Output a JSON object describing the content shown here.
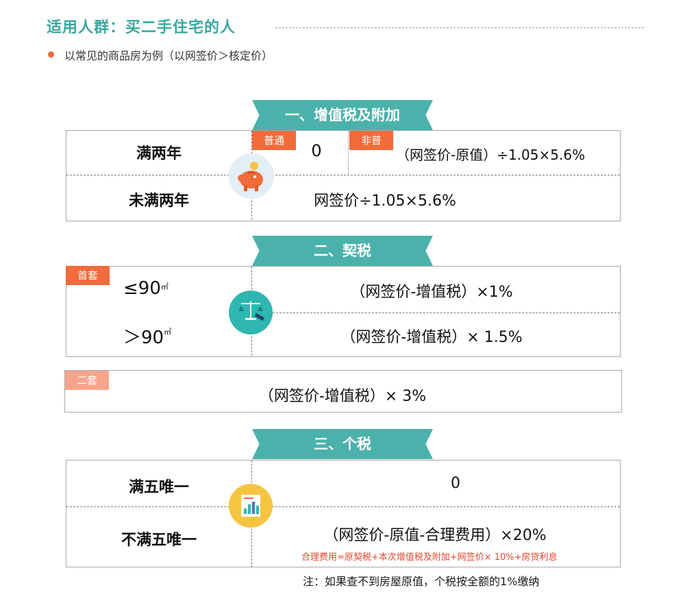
{
  "header": {
    "title": "适用人群：买二手住宅的人",
    "note": "以常见的商品房为例（以网签价＞核定价）"
  },
  "section1": {
    "banner": "一、增值税及附加",
    "row1_label": "满两年",
    "tag_normal": "普通",
    "normal_value": "0",
    "tag_nonnormal": "非普",
    "nonnormal_formula": "（网签价-原值）÷1.05×5.6%",
    "row2_label": "未满两年",
    "row2_formula": "网签价÷1.05×5.6%",
    "icon": "piggy-bank-icon"
  },
  "section2": {
    "banner": "二、契税",
    "tag_first": "首套",
    "row1_label": "≤90",
    "row1_unit": "㎡",
    "row1_formula": "（网签价-增值税）×1%",
    "row2_label": "＞90",
    "row2_unit": "㎡",
    "row2_formula": "（网签价-增值税）× 1.5%",
    "tag_second": "二套",
    "second_formula": "（网签价-增值税）× 3%",
    "icon": "scales-gavel-icon"
  },
  "section3": {
    "banner": "三、个税",
    "row1_label": "满五唯一",
    "row1_value": "0",
    "row2_label": "不满五唯一",
    "row2_formula": "（网签价-原值-合理费用）×20%",
    "fee_note": "合理费用=原契税+本次增值税及附加+网签价× 10%+房贷利息",
    "footnote": "注：如果查不到房屋原值，个税按全额的1%缴纳",
    "icon": "document-chart-icon"
  },
  "colors": {
    "teal": "#4bb2ab",
    "title": "#3aa8a0",
    "orange": "#f26b3a",
    "light_orange": "#f7a58a",
    "red_note": "#e8432e"
  }
}
